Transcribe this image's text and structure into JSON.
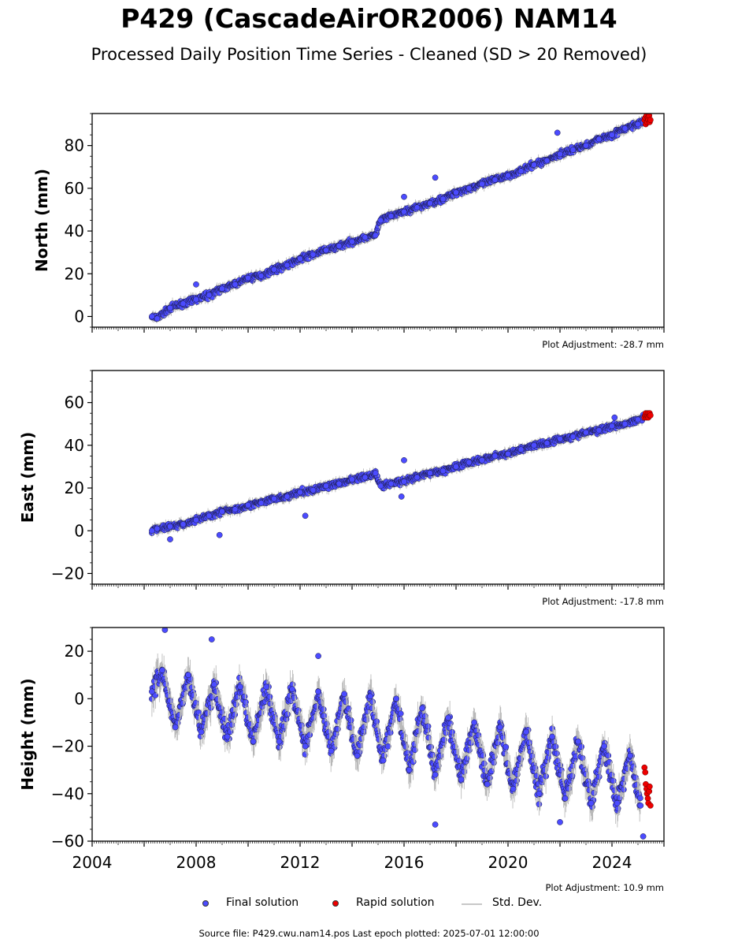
{
  "title": "P429 (CascadeAirOR2006) NAM14",
  "subtitle": "Processed Daily Position Time Series - Cleaned (SD > 20 Removed)",
  "legend": {
    "final": "Final solution",
    "rapid": "Rapid solution",
    "std": "Std. Dev."
  },
  "footer": "Source file: P429.cwu.nam14.pos  Last epoch plotted: 2025-07-01 12:00:00",
  "colors": {
    "final": "#4b4bff",
    "rapid": "#ee0000",
    "std": "#b4b4b4",
    "edge": "#1a1a40"
  },
  "chart_data": [
    {
      "type": "scatter",
      "ylabel": "North (mm)",
      "adjustment": "Plot Adjustment: -28.7 mm",
      "xlim": [
        2004,
        2026
      ],
      "ylim": [
        -5,
        95
      ],
      "yticks": [
        0,
        20,
        40,
        60,
        80
      ],
      "ytick_labels": [
        "0",
        "20",
        "40",
        "60",
        "80"
      ],
      "series": [
        {
          "name": "Final solution",
          "x": [
            2006.3,
            2006.5,
            2007.0,
            2007.5,
            2008.0,
            2008.5,
            2009.0,
            2009.5,
            2010.0,
            2010.5,
            2011.0,
            2011.5,
            2012.0,
            2012.5,
            2013.0,
            2013.5,
            2014.0,
            2014.5,
            2014.9,
            2015.1,
            2015.5,
            2016.0,
            2016.5,
            2017.0,
            2017.5,
            2018.0,
            2018.5,
            2019.0,
            2019.5,
            2020.0,
            2020.5,
            2021.0,
            2021.5,
            2022.0,
            2022.5,
            2023.0,
            2023.5,
            2024.0,
            2024.5,
            2025.0,
            2025.2
          ],
          "y": [
            0,
            -1,
            4,
            6,
            8,
            10,
            13,
            15,
            18,
            19,
            22,
            24,
            27,
            29,
            31,
            33,
            35,
            37,
            38,
            45,
            47,
            49,
            51,
            53,
            55,
            58,
            60,
            62,
            64,
            66,
            68,
            71,
            73,
            76,
            78,
            80,
            83,
            85,
            88,
            90,
            91
          ]
        },
        {
          "name": "Rapid solution",
          "x": [
            2025.25,
            2025.28,
            2025.3,
            2025.33,
            2025.35,
            2025.38,
            2025.4,
            2025.43,
            2025.45,
            2025.48
          ],
          "y": [
            92,
            93,
            90,
            94,
            91,
            93,
            92,
            94,
            91,
            92
          ]
        }
      ],
      "outliers": {
        "x": [
          2008.0,
          2016.0,
          2017.2,
          2021.9
        ],
        "y": [
          15,
          56,
          65,
          86
        ]
      }
    },
    {
      "type": "scatter",
      "ylabel": "East (mm)",
      "adjustment": "Plot Adjustment: -17.8 mm",
      "xlim": [
        2004,
        2026
      ],
      "ylim": [
        -25,
        75
      ],
      "yticks": [
        -20,
        0,
        20,
        40,
        60
      ],
      "ytick_labels": [
        "−20",
        "0",
        "20",
        "40",
        "60"
      ],
      "series": [
        {
          "name": "Final solution",
          "x": [
            2006.3,
            2006.5,
            2007.0,
            2007.5,
            2008.0,
            2008.5,
            2009.0,
            2009.5,
            2010.0,
            2010.5,
            2011.0,
            2011.5,
            2012.0,
            2012.5,
            2013.0,
            2013.5,
            2014.0,
            2014.5,
            2014.9,
            2015.1,
            2015.5,
            2016.0,
            2016.5,
            2017.0,
            2017.5,
            2018.0,
            2018.5,
            2019.0,
            2019.5,
            2020.0,
            2020.5,
            2021.0,
            2021.5,
            2022.0,
            2022.5,
            2023.0,
            2023.5,
            2024.0,
            2024.5,
            2025.0,
            2025.2
          ],
          "y": [
            0,
            1,
            2,
            3,
            5,
            7,
            9,
            10,
            12,
            13,
            15,
            16,
            18,
            19,
            21,
            22,
            24,
            25,
            27,
            21,
            22,
            23,
            25,
            27,
            28,
            30,
            32,
            33,
            35,
            36,
            38,
            40,
            41,
            43,
            44,
            46,
            47,
            49,
            50,
            52,
            53
          ]
        },
        {
          "name": "Rapid solution",
          "x": [
            2025.25,
            2025.28,
            2025.3,
            2025.33,
            2025.35,
            2025.38,
            2025.4,
            2025.43,
            2025.45,
            2025.48
          ],
          "y": [
            53,
            54,
            55,
            53,
            54,
            55,
            53,
            54,
            55,
            54
          ]
        }
      ],
      "outliers": {
        "x": [
          2007.0,
          2008.9,
          2012.2,
          2015.9,
          2016.0,
          2024.1
        ],
        "y": [
          -4,
          -2,
          7,
          16,
          33,
          53
        ]
      }
    },
    {
      "type": "scatter",
      "ylabel": "Height (mm)",
      "adjustment": "Plot Adjustment: 10.9 mm",
      "xlim": [
        2004,
        2026
      ],
      "ylim": [
        -60,
        30
      ],
      "yticks": [
        -60,
        -40,
        -20,
        0,
        20
      ],
      "ytick_labels": [
        "−60",
        "−40",
        "−20",
        "0",
        "20"
      ],
      "xticks": [
        2004,
        2008,
        2012,
        2016,
        2020,
        2024
      ],
      "xtick_labels": [
        "2004",
        "2008",
        "2012",
        "2016",
        "2020",
        "2024"
      ],
      "series": [
        {
          "name": "Final solution",
          "x": [
            2006.3,
            2006.7,
            2007.2,
            2007.7,
            2008.2,
            2008.7,
            2009.2,
            2009.7,
            2010.2,
            2010.7,
            2011.2,
            2011.7,
            2012.2,
            2012.7,
            2013.2,
            2013.7,
            2014.2,
            2014.7,
            2015.2,
            2015.7,
            2016.2,
            2016.7,
            2017.2,
            2017.7,
            2018.2,
            2018.7,
            2019.2,
            2019.7,
            2020.2,
            2020.7,
            2021.2,
            2021.7,
            2022.2,
            2022.7,
            2023.2,
            2023.7,
            2024.2,
            2024.7,
            2025.1
          ],
          "y": [
            3,
            12,
            -12,
            10,
            -14,
            6,
            -16,
            5,
            -18,
            5,
            -18,
            4,
            -20,
            3,
            -22,
            2,
            -24,
            1,
            -26,
            0,
            -30,
            -4,
            -32,
            -8,
            -34,
            -10,
            -36,
            -12,
            -38,
            -14,
            -40,
            -16,
            -42,
            -18,
            -44,
            -20,
            -44,
            -24,
            -45
          ]
        },
        {
          "name": "Rapid solution",
          "x": [
            2025.25,
            2025.28,
            2025.3,
            2025.33,
            2025.35,
            2025.38,
            2025.4,
            2025.43,
            2025.45,
            2025.48
          ],
          "y": [
            -29,
            -31,
            -36,
            -38,
            -40,
            -42,
            -44,
            -39,
            -37,
            -45
          ]
        }
      ],
      "outliers": {
        "x": [
          2006.8,
          2008.6,
          2012.7,
          2017.2,
          2022.0,
          2025.2
        ],
        "y": [
          29,
          25,
          18,
          -53,
          -52,
          -58
        ]
      }
    }
  ]
}
